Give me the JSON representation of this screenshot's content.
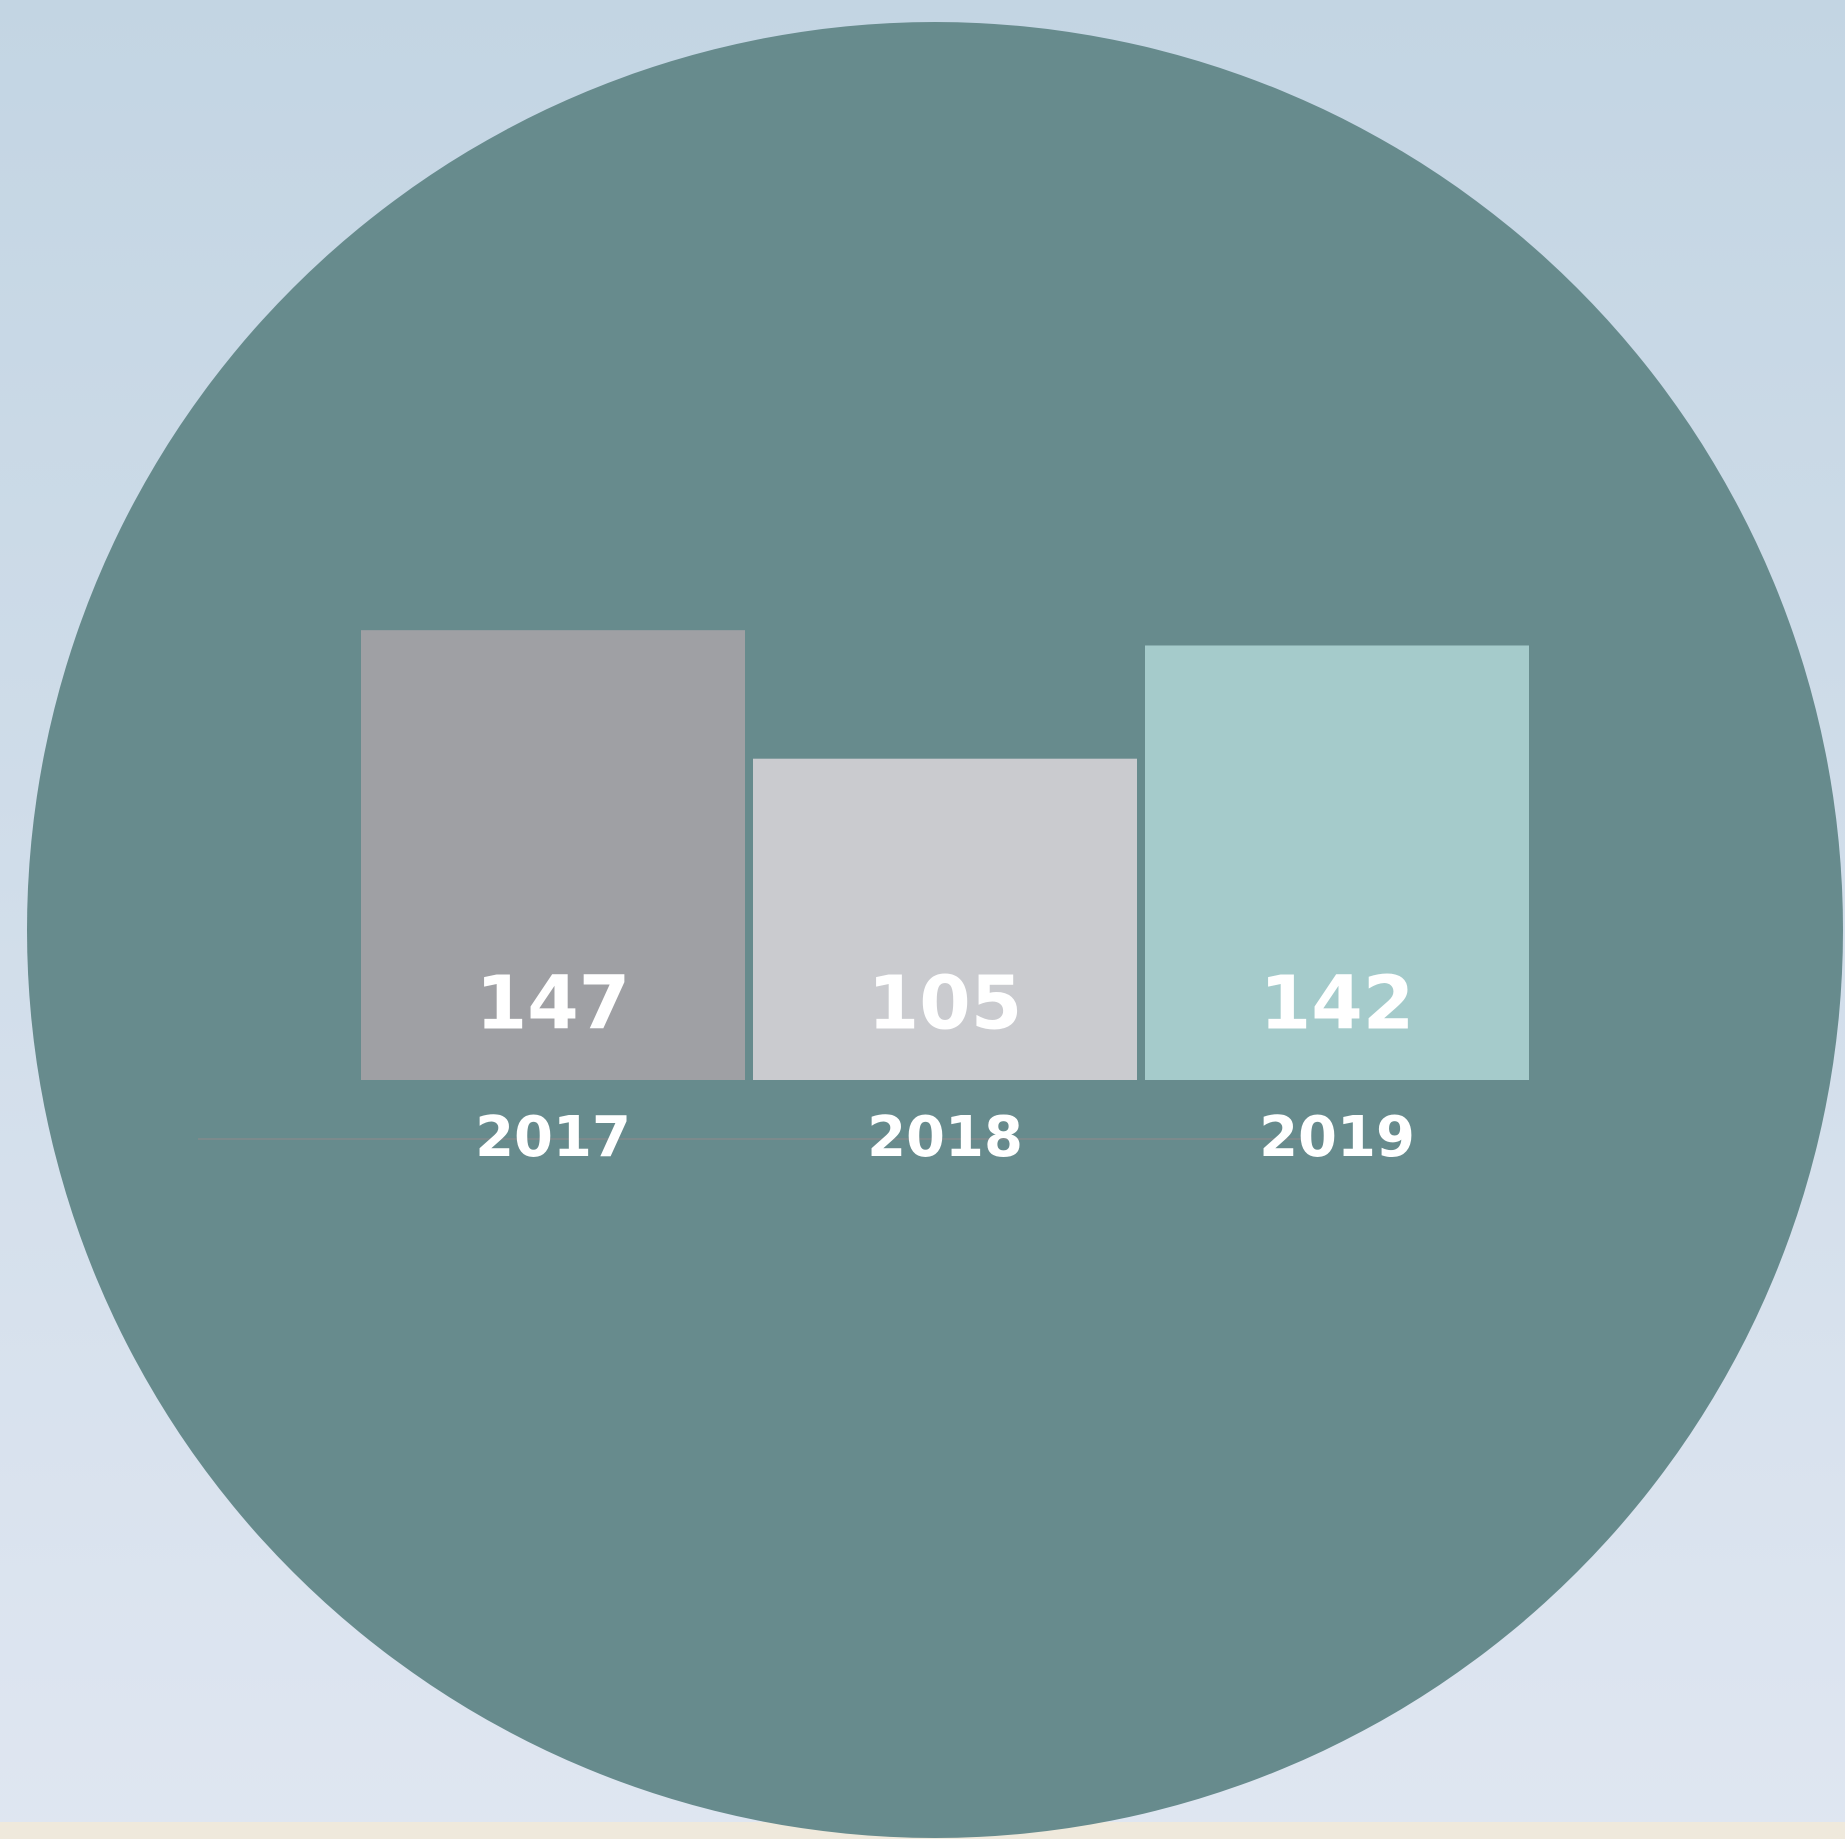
{
  "chart_data": {
    "type": "bar",
    "categories": [
      "2017",
      "2018",
      "2019"
    ],
    "values": [
      147,
      105,
      142
    ],
    "colors": [
      "#9fa0a4",
      "#cacbcf",
      "#a5cbcb"
    ]
  }
}
